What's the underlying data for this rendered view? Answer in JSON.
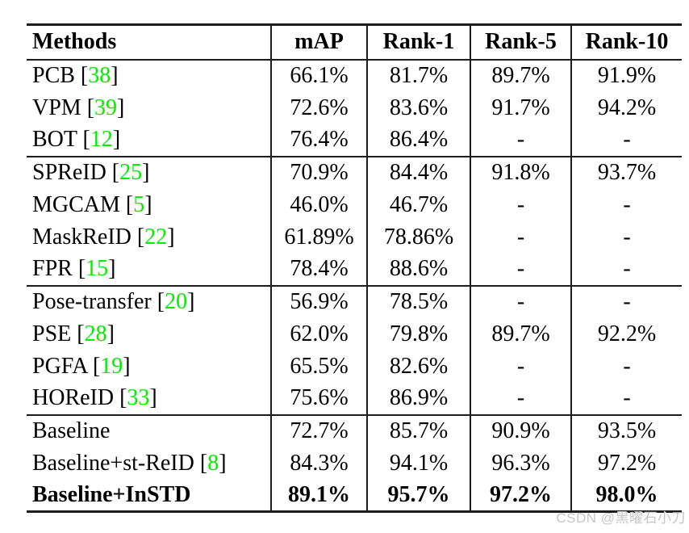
{
  "colors": {
    "citation_green": "#00ee00",
    "line": "#1c1c1c",
    "text": "#000000",
    "watermark_gray": "#c6c6c6"
  },
  "watermark": "CSDN @黑曜石小刀",
  "table": {
    "headers": [
      "Methods",
      "mAP",
      "Rank-1",
      "Rank-5",
      "Rank-10"
    ],
    "rows": [
      {
        "method": "PCB",
        "cite": "38",
        "values": [
          "66.1%",
          "81.7%",
          "89.7%",
          "91.9%"
        ],
        "group_start": false,
        "bold": false
      },
      {
        "method": "VPM",
        "cite": "39",
        "values": [
          "72.6%",
          "83.6%",
          "91.7%",
          "94.2%"
        ],
        "group_start": false,
        "bold": false
      },
      {
        "method": "BOT",
        "cite": "12",
        "values": [
          "76.4%",
          "86.4%",
          "-",
          "-"
        ],
        "group_start": false,
        "bold": false
      },
      {
        "method": "SPReID",
        "cite": "25",
        "values": [
          "70.9%",
          "84.4%",
          "91.8%",
          "93.7%"
        ],
        "group_start": true,
        "bold": false
      },
      {
        "method": "MGCAM",
        "cite": "5",
        "values": [
          "46.0%",
          "46.7%",
          "-",
          "-"
        ],
        "group_start": false,
        "bold": false
      },
      {
        "method": "MaskReID",
        "cite": "22",
        "values": [
          "61.89%",
          "78.86%",
          "-",
          "-"
        ],
        "group_start": false,
        "bold": false
      },
      {
        "method": "FPR",
        "cite": "15",
        "values": [
          "78.4%",
          "88.6%",
          "-",
          "-"
        ],
        "group_start": false,
        "bold": false
      },
      {
        "method": "Pose-transfer",
        "cite": "20",
        "values": [
          "56.9%",
          "78.5%",
          "-",
          "-"
        ],
        "group_start": true,
        "bold": false
      },
      {
        "method": "PSE",
        "cite": "28",
        "values": [
          "62.0%",
          "79.8%",
          "89.7%",
          "92.2%"
        ],
        "group_start": false,
        "bold": false
      },
      {
        "method": "PGFA",
        "cite": "19",
        "values": [
          "65.5%",
          "82.6%",
          "-",
          "-"
        ],
        "group_start": false,
        "bold": false
      },
      {
        "method": "HOReID",
        "cite": "33",
        "values": [
          "75.6%",
          "86.9%",
          "-",
          "-"
        ],
        "group_start": false,
        "bold": false
      },
      {
        "method": "Baseline",
        "cite": null,
        "values": [
          "72.7%",
          "85.7%",
          "90.9%",
          "93.5%"
        ],
        "group_start": true,
        "bold": false
      },
      {
        "method": "Baseline+st-ReID",
        "cite": "8",
        "values": [
          "84.3%",
          "94.1%",
          "96.3%",
          "97.2%"
        ],
        "group_start": false,
        "bold": false
      },
      {
        "method": "Baseline+InSTD",
        "cite": null,
        "values": [
          "89.1%",
          "95.7%",
          "97.2%",
          "98.0%"
        ],
        "group_start": false,
        "bold": true
      }
    ]
  }
}
